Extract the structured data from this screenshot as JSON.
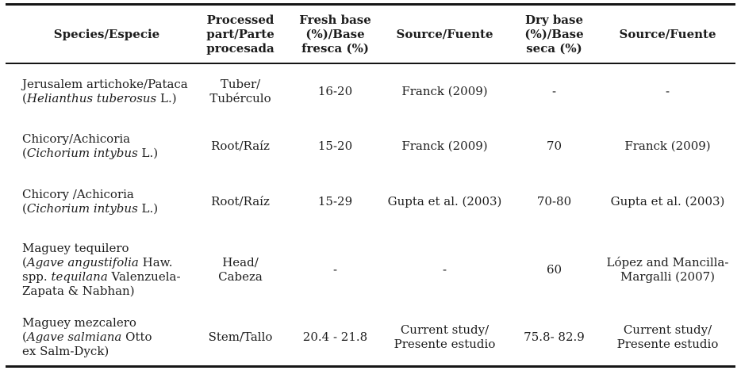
{
  "table": {
    "header": {
      "species": "Species/Especie",
      "processed_part": "Processed\npart/Parte\nprocesada",
      "fresh_base": "Fresh base\n(%)/Base\nfresca (%)",
      "fresh_source": "Source/Fuente",
      "dry_base": "Dry base\n(%)/Base\nseca (%)",
      "dry_source": "Source/Fuente"
    },
    "rows": [
      {
        "species": [
          [
            {
              "t": "Jerusalem artichoke/Pataca"
            }
          ],
          [
            {
              "t": "("
            },
            {
              "t": "Helianthus tuberosus",
              "i": true
            },
            {
              "t": " L.)"
            }
          ]
        ],
        "processed_part": "Tuber/\nTubérculo",
        "fresh_base": "16-20",
        "fresh_source": "Franck (2009)",
        "dry_base": "-",
        "dry_source": "-"
      },
      {
        "species": [
          [
            {
              "t": "Chicory/Achicoria"
            }
          ],
          [
            {
              "t": "("
            },
            {
              "t": "Cichorium intybus",
              "i": true
            },
            {
              "t": " L.)"
            }
          ]
        ],
        "processed_part": "Root/Raíz",
        "fresh_base": "15-20",
        "fresh_source": "Franck (2009)",
        "dry_base": "70",
        "dry_source": "Franck (2009)"
      },
      {
        "species": [
          [
            {
              "t": "Chicory /Achicoria"
            }
          ],
          [
            {
              "t": "("
            },
            {
              "t": "Cichorium intybus",
              "i": true
            },
            {
              "t": " L.)"
            }
          ]
        ],
        "processed_part": "Root/Raíz",
        "fresh_base": "15-29",
        "fresh_source": "Gupta et al. (2003)",
        "dry_base": "70-80",
        "dry_source": "Gupta et al. (2003)"
      },
      {
        "species": [
          [
            {
              "t": "Maguey tequilero"
            }
          ],
          [
            {
              "t": "("
            },
            {
              "t": "Agave angustifolia",
              "i": true
            },
            {
              "t": " Haw."
            }
          ],
          [
            {
              "t": "spp. "
            },
            {
              "t": "tequilana",
              "i": true
            },
            {
              "t": " Valenzuela-"
            }
          ],
          [
            {
              "t": "Zapata & Nabhan)"
            }
          ]
        ],
        "processed_part": "Head/\nCabeza",
        "fresh_base": "-",
        "fresh_source": "-",
        "dry_base": "60",
        "dry_source": "López and Mancilla-\nMargalli (2007)"
      },
      {
        "species": [
          [
            {
              "t": "Maguey mezcalero"
            }
          ],
          [
            {
              "t": "("
            },
            {
              "t": "Agave salmiana",
              "i": true
            },
            {
              "t": " Otto"
            }
          ],
          [
            {
              "t": "ex Salm-Dyck)"
            }
          ]
        ],
        "processed_part": "Stem/Tallo",
        "fresh_base": "20.4 - 21.8",
        "fresh_source": "Current study/\nPresente estudio",
        "dry_base": "75.8- 82.9",
        "dry_source": "Current study/\nPresente estudio"
      }
    ]
  }
}
